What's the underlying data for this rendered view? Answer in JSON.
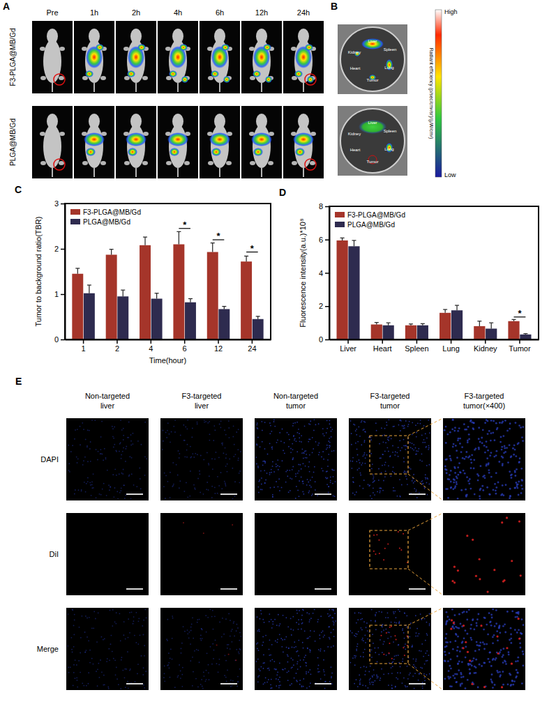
{
  "chart_data": [
    {
      "type": "bar",
      "title": "C",
      "ylabel": "Tumor to background ratio(TBR)",
      "xlabel": "Time(hour)",
      "categories": [
        1,
        2,
        4,
        6,
        12,
        24
      ],
      "series": [
        {
          "name": "F3-PLGA@MB/Gd",
          "color": "#a5352a",
          "values": [
            1.45,
            1.87,
            2.08,
            2.1,
            1.93,
            1.72
          ],
          "errors": [
            0.12,
            0.12,
            0.18,
            0.28,
            0.2,
            0.12
          ]
        },
        {
          "name": "PLGA@MB/Gd",
          "color": "#2e2b4f",
          "values": [
            1.02,
            0.95,
            0.9,
            0.82,
            0.67,
            0.45
          ],
          "errors": [
            0.18,
            0.14,
            0.12,
            0.08,
            0.06,
            0.06
          ]
        }
      ],
      "ylim": [
        0,
        3
      ],
      "yticks": [
        0,
        1,
        2,
        3
      ],
      "legend": "upper left",
      "annotations": [
        {
          "text": "*",
          "category": 6,
          "y": 2.45
        },
        {
          "text": "*",
          "category": 12,
          "y": 2.2
        },
        {
          "text": "*",
          "category": 24,
          "y": 1.93
        }
      ]
    },
    {
      "type": "bar",
      "title": "D",
      "ylabel": "Fluorescence intensity(a.u.)*10⁸",
      "categories": [
        "Liver",
        "Heart",
        "Spleen",
        "Lung",
        "Kidney",
        "Tumor"
      ],
      "series": [
        {
          "name": "F3-PLGA@MB/Gd",
          "color": "#a5352a",
          "values": [
            5.95,
            0.9,
            0.85,
            1.6,
            0.8,
            1.1
          ],
          "errors": [
            0.15,
            0.12,
            0.08,
            0.2,
            0.3,
            0.1
          ]
        },
        {
          "name": "PLGA@MB/Gd",
          "color": "#2e2b4f",
          "values": [
            5.6,
            0.85,
            0.85,
            1.75,
            0.65,
            0.3
          ],
          "errors": [
            0.35,
            0.15,
            0.1,
            0.3,
            0.35,
            0.05
          ]
        }
      ],
      "ylim": [
        0,
        8
      ],
      "yticks": [
        0,
        2,
        4,
        6,
        8
      ],
      "legend": "upper left",
      "annotations": [
        {
          "text": "*",
          "category": "Tumor",
          "y": 1.35
        }
      ]
    }
  ],
  "figure": {
    "imaging": {
      "label": "A",
      "timepoints": [
        "Pre",
        "1h",
        "2h",
        "4h",
        "6h",
        "12h",
        "24h"
      ],
      "groups": [
        "F3-PLGA@MB/Gd",
        "PLGA@MB/Gd"
      ]
    },
    "ex_vivo": {
      "label": "B",
      "organs": [
        "Liver",
        "Spleen",
        "Kidney",
        "Lung",
        "Heart",
        "Tumor"
      ]
    },
    "colorbar": {
      "high": "High",
      "low": "Low",
      "title": "Radiant efficiency (p/sec/cm²/sr)/(μW/cm²)"
    },
    "microscopy": {
      "label": "E",
      "columns": [
        [
          "Non-targeted",
          "liver"
        ],
        [
          "F3-targeted",
          "liver"
        ],
        [
          "Non-targeted",
          "tumor"
        ],
        [
          "F3-targeted",
          "tumor"
        ],
        [
          "F3-targeted",
          "tumor(×400)"
        ]
      ],
      "rows": [
        "DAPI",
        "DiI",
        "Merge"
      ]
    }
  }
}
